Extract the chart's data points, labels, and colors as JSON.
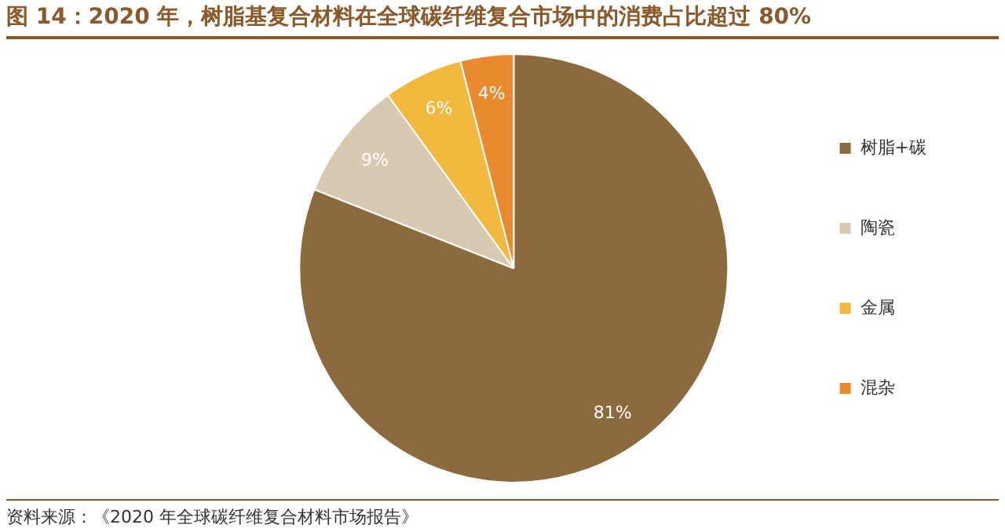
{
  "chart_data": {
    "type": "pie",
    "title": "图 14：2020 年，树脂基复合材料在全球碳纤维复合市场中的消费占比超过 80%",
    "categories": [
      "树脂+碳",
      "陶瓷",
      "金属",
      "混杂"
    ],
    "values": [
      81,
      9,
      6,
      4
    ],
    "colors": [
      "#8b6a3e",
      "#d8cab2",
      "#f2b93e",
      "#e98a2e"
    ],
    "value_labels": [
      "81%",
      "9%",
      "6%",
      "4%"
    ],
    "legend": "right",
    "annotations": [
      "资料来源：《2020 年全球碳纤维复合材料市场报告》"
    ]
  }
}
